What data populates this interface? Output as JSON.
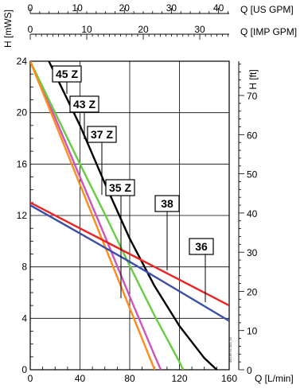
{
  "chart_data": {
    "type": "line",
    "title": "",
    "axes": {
      "x_primary": {
        "label": "Q [L/min]",
        "range": [
          0,
          160
        ],
        "ticks": [
          0,
          40,
          80,
          120,
          160
        ]
      },
      "x_us_gpm": {
        "label": "Q [US GPM]",
        "range": [
          0,
          42.27
        ],
        "ticks": [
          0,
          10,
          20,
          30,
          40
        ]
      },
      "x_imp_gpm": {
        "label": "Q [IMP GPM]",
        "range": [
          0,
          35.2
        ],
        "ticks": [
          0,
          10,
          20,
          30
        ]
      },
      "y_primary": {
        "label": "H [mWS]",
        "range": [
          0,
          24
        ],
        "ticks": [
          0,
          4,
          8,
          12,
          16,
          20,
          24
        ]
      },
      "y_secondary": {
        "label": "H [ft]",
        "range": [
          0,
          78.74
        ],
        "ticks": [
          0,
          10,
          20,
          30,
          40,
          50,
          60,
          70
        ]
      }
    },
    "grid": true,
    "legend": "labels on curves",
    "series": [
      {
        "name": "45 Z",
        "color": "#000000",
        "x": [
          15,
          40,
          60,
          80,
          100,
          120,
          140,
          150
        ],
        "y": [
          24,
          19,
          14.5,
          10.2,
          6.5,
          3.4,
          0.9,
          0
        ]
      },
      {
        "name": "43 Z",
        "color": "#cc55bb",
        "x": [
          0,
          20,
          40,
          60,
          80,
          100,
          105
        ],
        "y": [
          24,
          19.6,
          15,
          10.4,
          5.7,
          1.1,
          0
        ]
      },
      {
        "name": "37 Z",
        "color": "#66cc44",
        "x": [
          0,
          20,
          40,
          60,
          80,
          100,
          120,
          123
        ],
        "y": [
          24,
          20,
          16,
          12.1,
          8.1,
          4.2,
          0.6,
          0
        ]
      },
      {
        "name": "35 Z",
        "color": "#ff8c1a",
        "x": [
          0,
          20,
          40,
          60,
          80,
          100
        ],
        "y": [
          24,
          19.2,
          14.4,
          9.6,
          4.8,
          0
        ]
      },
      {
        "name": "38",
        "color": "#ee2222",
        "x": [
          0,
          40,
          80,
          120,
          160
        ],
        "y": [
          13,
          11,
          9,
          7,
          5
        ]
      },
      {
        "name": "36",
        "color": "#3a4fa8",
        "x": [
          0,
          40,
          80,
          120,
          160
        ],
        "y": [
          12.8,
          10.6,
          8.4,
          6.1,
          3.8
        ]
      }
    ],
    "annotations": [
      {
        "text": "45 Z",
        "series": "45 Z"
      },
      {
        "text": "43 Z",
        "series": "43 Z"
      },
      {
        "text": "37 Z",
        "series": "37 Z"
      },
      {
        "text": "35 Z",
        "series": "35 Z"
      },
      {
        "text": "38",
        "series": "38"
      },
      {
        "text": "36",
        "series": "36"
      }
    ],
    "code": "400 85 02 001_01"
  }
}
